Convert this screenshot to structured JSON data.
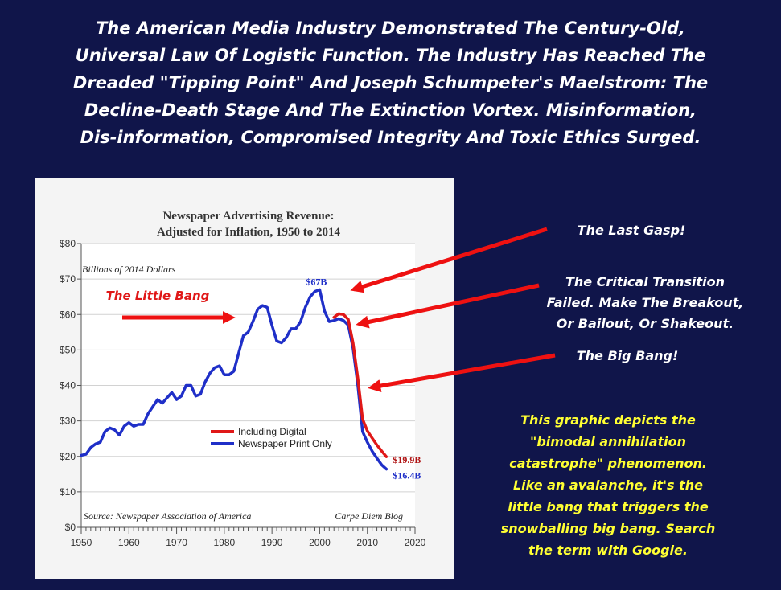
{
  "headline": [
    "The American Media Industry Demonstrated The Century-Old,",
    "Universal Law Of Logistic Function. The Industry Has Reached The",
    "Dreaded \"Tipping Point\" And Joseph Schumpeter's Maelstrom: The",
    "Decline-Death Stage And The Extinction Vortex. Misinformation,",
    "Dis-information, Compromised Integrity And Toxic Ethics Surged."
  ],
  "callouts": {
    "last_gasp": [
      "The Last Gasp!"
    ],
    "critical_transition": [
      "The Critical Transition",
      "Failed. Make The Breakout,",
      "Or Bailout, Or Shakeout."
    ],
    "big_bang": [
      "The Big Bang!"
    ],
    "little_bang": "The Little Bang"
  },
  "note": [
    "This graphic depicts the",
    "\"bimodal annihilation",
    "catastrophe\" phenomenon.",
    "Like an avalanche, it's the",
    "little bang that triggers the",
    "snowballing big bang. Search",
    "the term with Google."
  ],
  "colors": {
    "background": "#10154a",
    "print_series": "#1f2fc8",
    "digital_series": "#e01818",
    "arrow": "#ee1111",
    "note_text": "#ffff33"
  },
  "chart_data": {
    "type": "line",
    "title": [
      "Newspaper Advertising Revenue:",
      "Adjusted for Inflation, 1950 to 2014"
    ],
    "unit_label": "Billions of 2014 Dollars",
    "source": "Source: Newspaper Association of America",
    "credit": "Carpe Diem Blog",
    "xlim": [
      1950,
      2020
    ],
    "ylim": [
      0,
      80
    ],
    "x_ticks": [
      1950,
      1960,
      1970,
      1980,
      1990,
      2000,
      2010,
      2020
    ],
    "y_ticks": [
      {
        "v": 0,
        "label": "$0"
      },
      {
        "v": 10,
        "label": "$10"
      },
      {
        "v": 20,
        "label": "$20"
      },
      {
        "v": 30,
        "label": "$30"
      },
      {
        "v": 40,
        "label": "$40"
      },
      {
        "v": 50,
        "label": "$50"
      },
      {
        "v": 60,
        "label": "$60"
      },
      {
        "v": 70,
        "label": "$70"
      },
      {
        "v": 80,
        "label": "$80"
      }
    ],
    "grid": "horizontal",
    "legend_position": "lower-middle",
    "series": [
      {
        "name": "Including Digital",
        "color": "#e01818",
        "x": [
          2003,
          2004,
          2005,
          2006,
          2007,
          2008,
          2009,
          2010,
          2011,
          2012,
          2013,
          2014
        ],
        "y": [
          59.2,
          60.2,
          60.0,
          58.6,
          52.0,
          42.0,
          30.5,
          27.2,
          25.2,
          23.2,
          21.5,
          19.9
        ]
      },
      {
        "name": "Newspaper Print Only",
        "color": "#1f2fc8",
        "x": [
          1950,
          1951,
          1952,
          1953,
          1954,
          1955,
          1956,
          1957,
          1958,
          1959,
          1960,
          1961,
          1962,
          1963,
          1964,
          1965,
          1966,
          1967,
          1968,
          1969,
          1970,
          1971,
          1972,
          1973,
          1974,
          1975,
          1976,
          1977,
          1978,
          1979,
          1980,
          1981,
          1982,
          1983,
          1984,
          1985,
          1986,
          1987,
          1988,
          1989,
          1990,
          1991,
          1992,
          1993,
          1994,
          1995,
          1996,
          1997,
          1998,
          1999,
          2000,
          2001,
          2002,
          2003,
          2004,
          2005,
          2006,
          2007,
          2008,
          2009,
          2010,
          2011,
          2012,
          2013,
          2014
        ],
        "y": [
          20.3,
          20.6,
          22.5,
          23.5,
          24.0,
          27.0,
          28.0,
          27.5,
          26.0,
          28.5,
          29.5,
          28.5,
          29.0,
          29.0,
          32.0,
          34.0,
          36.0,
          35.0,
          36.5,
          38.0,
          36.0,
          37.0,
          40.0,
          40.0,
          37.0,
          37.5,
          41.0,
          43.5,
          45.0,
          45.5,
          43.0,
          43.0,
          44.0,
          49.0,
          54.0,
          55.0,
          58.0,
          61.5,
          62.5,
          62.0,
          57.0,
          52.5,
          52.0,
          53.5,
          56.0,
          56.0,
          58.0,
          62.0,
          65.0,
          66.5,
          67.0,
          61.0,
          58.0,
          58.3,
          58.8,
          58.3,
          57.0,
          50.5,
          40.0,
          27.0,
          24.0,
          21.5,
          19.5,
          17.6,
          16.4
        ]
      }
    ],
    "annotations": [
      {
        "text": "$67B",
        "x": 2000,
        "y": 67
      },
      {
        "text": "$19.9B",
        "x": 2014,
        "y": 19.9
      },
      {
        "text": "$16.4B",
        "x": 2014,
        "y": 16.4
      }
    ]
  }
}
